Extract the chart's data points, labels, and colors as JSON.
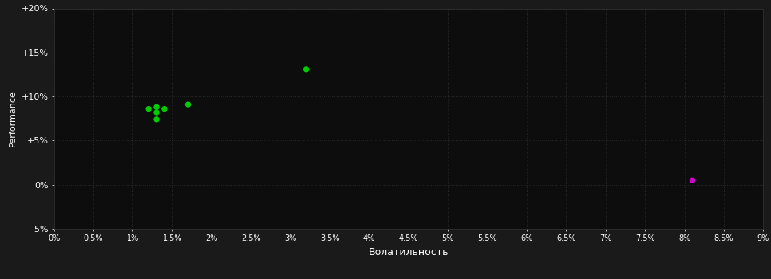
{
  "background_color": "#1a1a1a",
  "plot_bg_color": "#0d0d0d",
  "grid_color": "#2a2a2a",
  "text_color": "#ffffff",
  "xlabel": "Волатильность",
  "ylabel": "Performance",
  "xlim": [
    0.0,
    0.09
  ],
  "ylim": [
    -0.05,
    0.2
  ],
  "xticks": [
    0.0,
    0.005,
    0.01,
    0.015,
    0.02,
    0.025,
    0.03,
    0.035,
    0.04,
    0.045,
    0.05,
    0.055,
    0.06,
    0.065,
    0.07,
    0.075,
    0.08,
    0.085,
    0.09
  ],
  "yticks": [
    -0.05,
    0.0,
    0.05,
    0.1,
    0.15,
    0.2
  ],
  "green_points": [
    [
      0.012,
      0.086
    ],
    [
      0.013,
      0.088
    ],
    [
      0.013,
      0.082
    ],
    [
      0.013,
      0.074
    ],
    [
      0.014,
      0.086
    ],
    [
      0.017,
      0.091
    ],
    [
      0.032,
      0.131
    ]
  ],
  "magenta_points": [
    [
      0.081,
      0.005
    ]
  ],
  "green_color": "#00cc00",
  "magenta_color": "#cc00cc",
  "marker_size": 28
}
